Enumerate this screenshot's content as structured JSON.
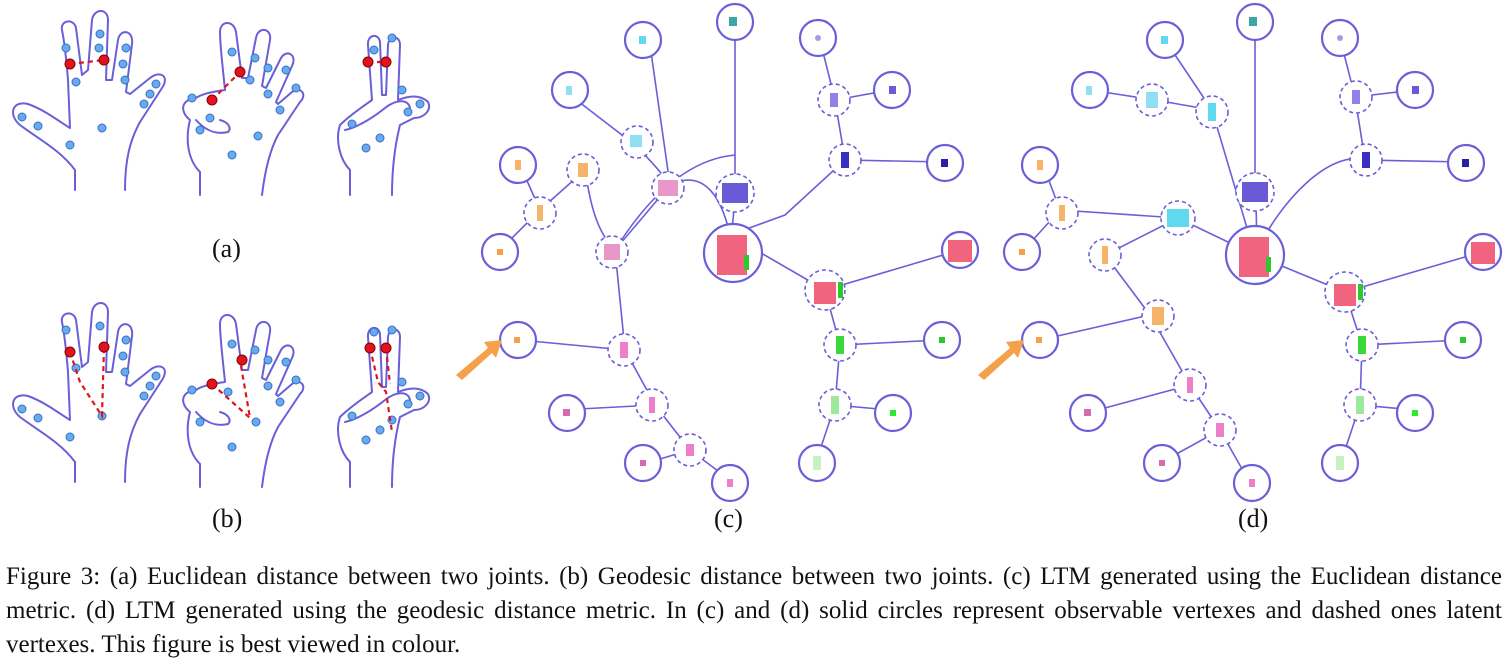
{
  "panels": [
    {
      "id": "a",
      "label": "(a)"
    },
    {
      "id": "b",
      "label": "(b)"
    },
    {
      "id": "c",
      "label": "(c)"
    },
    {
      "id": "d",
      "label": "(d)"
    }
  ],
  "caption": "Figure 3: (a) Euclidean distance between two joints. (b) Geodesic distance between two joints. (c) LTM generated using the Euclidean distance metric. (d) LTM generated using the geodesic distance metric. In (c) and (d) solid circles represent observable vertexes and dashed ones latent vertexes. This figure is best viewed in colour.",
  "colors": {
    "outline": "#6a5fd8",
    "joint": "#66aaf0",
    "selected_joint": "#e0141e",
    "arrow": "#f5a04a"
  }
}
